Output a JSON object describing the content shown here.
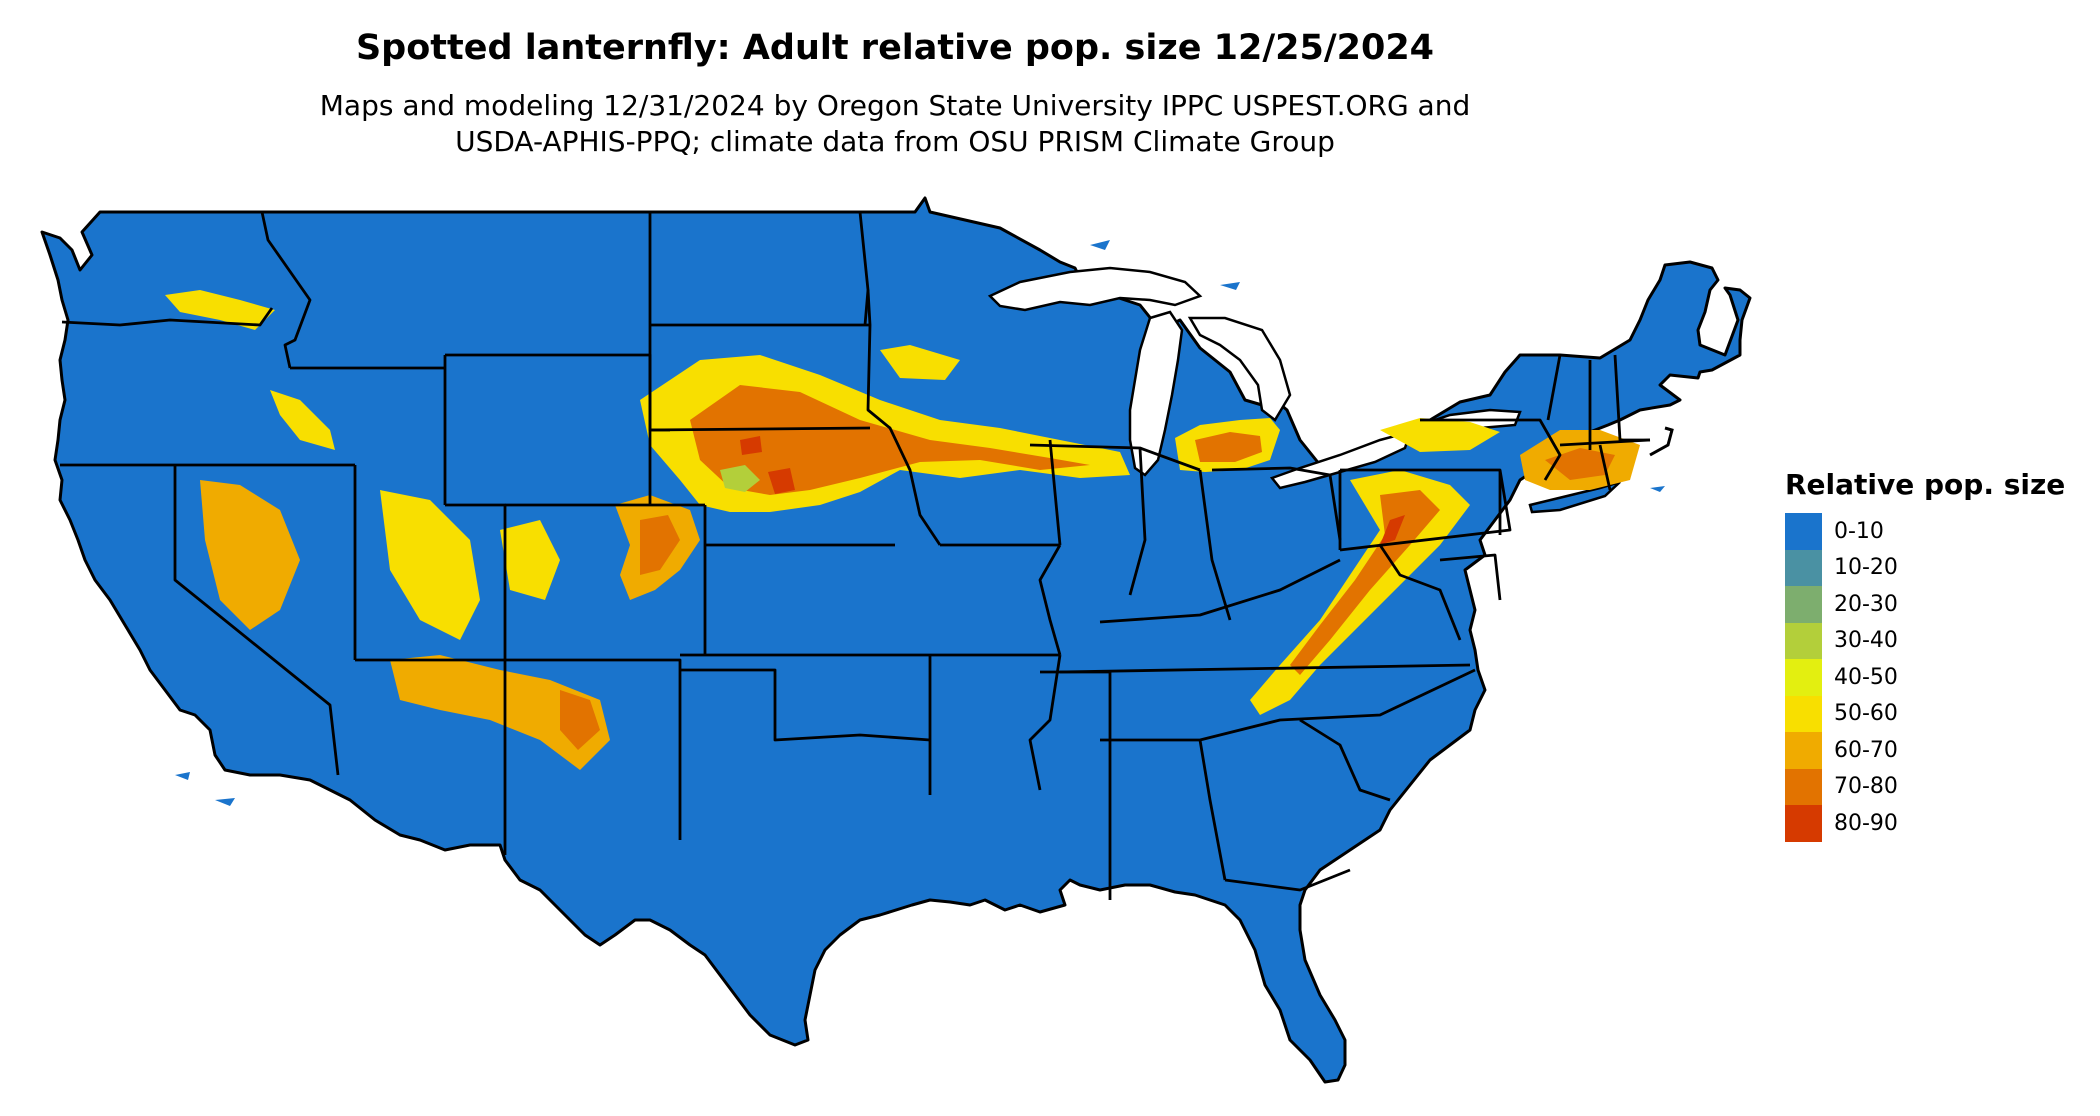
{
  "title": "Spotted lanternfly: Adult relative pop. size 12/25/2024",
  "subtitle": [
    "Maps and modeling 12/31/2024 by Oregon State University IPPC USPEST.ORG and",
    "USDA-APHIS-PPQ; climate data from OSU PRISM Climate Group"
  ],
  "legend": {
    "title": "Relative pop. size",
    "items": [
      {
        "label": "0-10",
        "color": "#1a74cc"
      },
      {
        "label": "10-20",
        "color": "#4a91a3"
      },
      {
        "label": "20-30",
        "color": "#7dae6e"
      },
      {
        "label": "30-40",
        "color": "#b3cf3a"
      },
      {
        "label": "40-50",
        "color": "#e3ef10"
      },
      {
        "label": "50-60",
        "color": "#f8df00"
      },
      {
        "label": "60-70",
        "color": "#f0ab00"
      },
      {
        "label": "70-80",
        "color": "#e27300"
      },
      {
        "label": "80-90",
        "color": "#d63a00"
      }
    ]
  },
  "map": {
    "base_color": "#1a74cc",
    "border_color": "#000000"
  }
}
